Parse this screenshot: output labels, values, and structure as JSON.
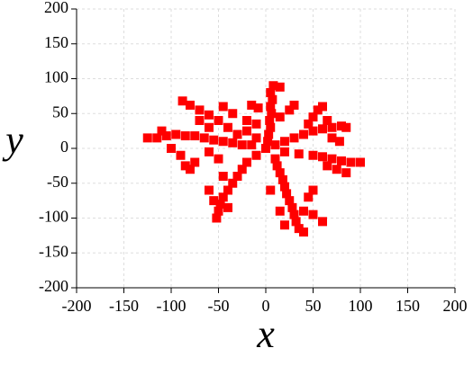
{
  "chart_data": {
    "type": "scatter",
    "x_label": "x",
    "y_label": "y",
    "color": "#ff0000",
    "grid": true,
    "xlim": [
      -200,
      200
    ],
    "ylim": [
      -200,
      200
    ],
    "xticks": [
      -200,
      -150,
      -100,
      -50,
      0,
      50,
      100,
      150,
      200
    ],
    "yticks": [
      -200,
      -150,
      -100,
      -50,
      0,
      50,
      100,
      150,
      200
    ],
    "x": [
      0,
      2,
      3,
      5,
      4,
      6,
      5,
      7,
      5,
      8,
      15,
      -8,
      -15,
      15,
      25,
      30,
      -10,
      -20,
      10,
      20,
      30,
      40,
      50,
      60,
      70,
      80,
      85,
      45,
      50,
      55,
      60,
      65,
      70,
      78,
      20,
      35,
      50,
      60,
      70,
      80,
      90,
      100,
      75,
      85,
      65,
      10,
      12,
      15,
      18,
      20,
      22,
      25,
      28,
      30,
      32,
      35,
      40,
      40,
      50,
      60,
      45,
      50,
      15,
      20,
      5,
      -10,
      -20,
      -25,
      -30,
      -35,
      -40,
      -45,
      -48,
      -50,
      -52,
      -55,
      -60,
      -40,
      -45,
      -15,
      -25,
      -35,
      -45,
      -55,
      -65,
      -75,
      -85,
      -95,
      -105,
      -115,
      -125,
      -110,
      -100,
      -90,
      -85,
      -80,
      -75,
      -60,
      -50,
      -30,
      -40,
      -50,
      -60,
      -70,
      -80,
      -88,
      -70,
      -60,
      -20,
      -35,
      -45,
      -10
    ],
    "y": [
      0,
      10,
      20,
      30,
      40,
      50,
      60,
      70,
      80,
      90,
      88,
      58,
      62,
      45,
      55,
      62,
      35,
      40,
      5,
      10,
      15,
      20,
      25,
      28,
      30,
      32,
      30,
      35,
      45,
      55,
      60,
      40,
      15,
      10,
      -5,
      -8,
      -10,
      -12,
      -15,
      -18,
      -20,
      -20,
      -30,
      -35,
      -25,
      -15,
      -25,
      -35,
      -45,
      -55,
      -65,
      -75,
      -85,
      -95,
      -105,
      -115,
      -120,
      -90,
      -95,
      -105,
      -70,
      -60,
      -90,
      -110,
      -60,
      -10,
      -20,
      -30,
      -40,
      -50,
      -60,
      -70,
      -80,
      -90,
      -100,
      -75,
      -60,
      -85,
      -40,
      5,
      5,
      8,
      10,
      12,
      15,
      18,
      18,
      20,
      18,
      15,
      15,
      25,
      0,
      -10,
      -25,
      -30,
      -20,
      -5,
      -15,
      20,
      30,
      40,
      48,
      55,
      62,
      68,
      40,
      30,
      25,
      50,
      60,
      15
    ]
  }
}
